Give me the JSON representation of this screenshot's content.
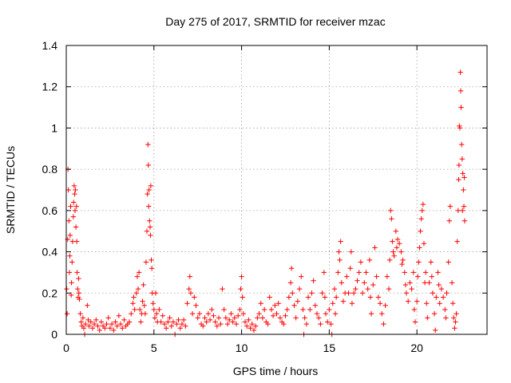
{
  "chart_data": {
    "type": "scatter",
    "title": "Day 275 of 2017, SRMTID for receiver mzac",
    "xlabel": "GPS time / hours",
    "ylabel": "SRMTID / TECUs",
    "xlim": [
      0,
      24
    ],
    "ylim": [
      0,
      1.4
    ],
    "xticks": [
      0,
      5,
      10,
      15,
      20
    ],
    "xtick_labels": [
      "0",
      "5",
      "10",
      "15",
      "20"
    ],
    "yticks": [
      0,
      0.2,
      0.4,
      0.6,
      0.8,
      1.0,
      1.2,
      1.4
    ],
    "ytick_labels": [
      "0",
      "0.2",
      "0.4",
      "0.6",
      "0.8",
      "1",
      "1.2",
      "1.4"
    ],
    "grid": true,
    "marker": "+",
    "color": "#ff0000",
    "series": [
      {
        "name": "SRMTID",
        "points": [
          [
            0.02,
            0.22
          ],
          [
            0.05,
            0.1
          ],
          [
            0.08,
            0.46
          ],
          [
            0.1,
            0.8
          ],
          [
            0.12,
            0.7
          ],
          [
            0.15,
            0.55
          ],
          [
            0.18,
            0.3
          ],
          [
            0.2,
            0.38
          ],
          [
            0.22,
            0.48
          ],
          [
            0.25,
            0.62
          ],
          [
            0.28,
            0.19
          ],
          [
            0.3,
            0.25
          ],
          [
            0.33,
            0.35
          ],
          [
            0.36,
            0.45
          ],
          [
            0.4,
            0.57
          ],
          [
            0.42,
            0.64
          ],
          [
            0.45,
            0.72
          ],
          [
            0.48,
            0.68
          ],
          [
            0.5,
            0.6
          ],
          [
            0.52,
            0.7
          ],
          [
            0.55,
            0.52
          ],
          [
            0.58,
            0.62
          ],
          [
            0.6,
            0.45
          ],
          [
            0.62,
            0.3
          ],
          [
            0.65,
            0.22
          ],
          [
            0.68,
            0.18
          ],
          [
            0.7,
            0.27
          ],
          [
            0.72,
            0.2
          ],
          [
            0.75,
            0.17
          ],
          [
            0.8,
            0.1
          ],
          [
            0.85,
            0.06
          ],
          [
            0.9,
            0.04
          ],
          [
            0.95,
            0.08
          ],
          [
            1.0,
            0.03
          ],
          [
            1.05,
            0.0
          ],
          [
            1.1,
            0.05
          ],
          [
            1.2,
            0.14
          ],
          [
            1.25,
            0.07
          ],
          [
            1.3,
            0.04
          ],
          [
            1.4,
            0.06
          ],
          [
            1.5,
            0.03
          ],
          [
            1.6,
            0.05
          ],
          [
            1.7,
            0.07
          ],
          [
            1.8,
            0.04
          ],
          [
            1.9,
            0.02
          ],
          [
            2.0,
            0.06
          ],
          [
            2.1,
            0.04
          ],
          [
            2.2,
            0.03
          ],
          [
            2.3,
            0.05
          ],
          [
            2.4,
            0.08
          ],
          [
            2.5,
            0.03
          ],
          [
            2.6,
            0.05
          ],
          [
            2.7,
            0.02
          ],
          [
            2.8,
            0.06
          ],
          [
            2.9,
            0.04
          ],
          [
            3.0,
            0.09
          ],
          [
            3.1,
            0.05
          ],
          [
            3.2,
            0.03
          ],
          [
            3.3,
            0.07
          ],
          [
            3.4,
            0.04
          ],
          [
            3.5,
            0.05
          ],
          [
            3.6,
            0.06
          ],
          [
            3.7,
            0.1
          ],
          [
            3.8,
            0.15
          ],
          [
            3.85,
            0.18
          ],
          [
            3.9,
            0.12
          ],
          [
            4.0,
            0.2
          ],
          [
            4.05,
            0.28
          ],
          [
            4.1,
            0.22
          ],
          [
            4.15,
            0.3
          ],
          [
            4.2,
            0.12
          ],
          [
            4.25,
            0.06
          ],
          [
            4.3,
            0.1
          ],
          [
            4.35,
            0.16
          ],
          [
            4.4,
            0.24
          ],
          [
            4.45,
            0.14
          ],
          [
            4.5,
            0.1
          ],
          [
            4.55,
            0.35
          ],
          [
            4.6,
            0.5
          ],
          [
            4.63,
            0.68
          ],
          [
            4.66,
            0.92
          ],
          [
            4.68,
            0.82
          ],
          [
            4.7,
            0.62
          ],
          [
            4.72,
            0.7
          ],
          [
            4.75,
            0.55
          ],
          [
            4.78,
            0.52
          ],
          [
            4.8,
            0.48
          ],
          [
            4.82,
            0.72
          ],
          [
            4.85,
            0.36
          ],
          [
            4.88,
            0.32
          ],
          [
            4.9,
            0.2
          ],
          [
            4.95,
            0.15
          ],
          [
            5.0,
            0.12
          ],
          [
            5.05,
            0.08
          ],
          [
            5.1,
            0.2
          ],
          [
            5.15,
            0.1
          ],
          [
            5.2,
            0.06
          ],
          [
            5.3,
            0.12
          ],
          [
            5.4,
            0.06
          ],
          [
            5.5,
            0.09
          ],
          [
            5.6,
            0.05
          ],
          [
            5.7,
            0.03
          ],
          [
            5.8,
            0.06
          ],
          [
            5.9,
            0.08
          ],
          [
            6.0,
            0.04
          ],
          [
            6.1,
            0.06
          ],
          [
            6.2,
            0.0
          ],
          [
            6.3,
            0.05
          ],
          [
            6.4,
            0.07
          ],
          [
            6.5,
            0.03
          ],
          [
            6.6,
            0.05
          ],
          [
            6.7,
            0.07
          ],
          [
            6.8,
            0.04
          ],
          [
            6.9,
            0.15
          ],
          [
            7.0,
            0.22
          ],
          [
            7.05,
            0.28
          ],
          [
            7.1,
            0.2
          ],
          [
            7.2,
            0.1
          ],
          [
            7.3,
            0.18
          ],
          [
            7.4,
            0.14
          ],
          [
            7.5,
            0.08
          ],
          [
            7.6,
            0.1
          ],
          [
            7.7,
            0.05
          ],
          [
            7.8,
            0.04
          ],
          [
            7.9,
            0.08
          ],
          [
            8.0,
            0.06
          ],
          [
            8.1,
            0.1
          ],
          [
            8.2,
            0.07
          ],
          [
            8.3,
            0.12
          ],
          [
            8.4,
            0.09
          ],
          [
            8.5,
            0.06
          ],
          [
            8.6,
            0.04
          ],
          [
            8.7,
            0.08
          ],
          [
            8.8,
            0.05
          ],
          [
            8.9,
            0.22
          ],
          [
            9.0,
            0.12
          ],
          [
            9.1,
            0.08
          ],
          [
            9.2,
            0.05
          ],
          [
            9.3,
            0.07
          ],
          [
            9.4,
            0.1
          ],
          [
            9.5,
            0.06
          ],
          [
            9.6,
            0.08
          ],
          [
            9.7,
            0.05
          ],
          [
            9.8,
            0.09
          ],
          [
            9.9,
            0.12
          ],
          [
            9.95,
            0.22
          ],
          [
            10.0,
            0.28
          ],
          [
            10.05,
            0.18
          ],
          [
            10.1,
            0.1
          ],
          [
            10.2,
            0.06
          ],
          [
            10.3,
            0.04
          ],
          [
            10.4,
            0.07
          ],
          [
            10.5,
            0.03
          ],
          [
            10.6,
            0.05
          ],
          [
            10.7,
            0.02
          ],
          [
            10.8,
            0.04
          ],
          [
            10.9,
            0.08
          ],
          [
            11.0,
            0.1
          ],
          [
            11.1,
            0.15
          ],
          [
            11.2,
            0.08
          ],
          [
            11.3,
            0.12
          ],
          [
            11.4,
            0.06
          ],
          [
            11.5,
            0.05
          ],
          [
            11.6,
            0.18
          ],
          [
            11.7,
            0.12
          ],
          [
            11.8,
            0.09
          ],
          [
            11.9,
            0.14
          ],
          [
            12.0,
            0.1
          ],
          [
            12.1,
            0.15
          ],
          [
            12.2,
            0.08
          ],
          [
            12.3,
            0.06
          ],
          [
            12.4,
            0.05
          ],
          [
            12.5,
            0.09
          ],
          [
            12.6,
            0.12
          ],
          [
            12.7,
            0.18
          ],
          [
            12.8,
            0.25
          ],
          [
            12.85,
            0.32
          ],
          [
            12.9,
            0.2
          ],
          [
            13.0,
            0.14
          ],
          [
            13.1,
            0.08
          ],
          [
            13.2,
            0.16
          ],
          [
            13.3,
            0.22
          ],
          [
            13.4,
            0.28
          ],
          [
            13.5,
            0.12
          ],
          [
            13.55,
            0.0
          ],
          [
            13.6,
            0.08
          ],
          [
            13.7,
            0.05
          ],
          [
            13.8,
            0.18
          ],
          [
            13.9,
            0.12
          ],
          [
            14.0,
            0.2
          ],
          [
            14.1,
            0.26
          ],
          [
            14.2,
            0.14
          ],
          [
            14.3,
            0.1
          ],
          [
            14.4,
            0.08
          ],
          [
            14.5,
            0.05
          ],
          [
            14.6,
            0.2
          ],
          [
            14.7,
            0.3
          ],
          [
            14.75,
            0.18
          ],
          [
            14.8,
            0.1
          ],
          [
            14.9,
            0.06
          ],
          [
            15.0,
            0.12
          ],
          [
            15.1,
            0.05
          ],
          [
            15.15,
            0.0
          ],
          [
            15.2,
            0.15
          ],
          [
            15.3,
            0.22
          ],
          [
            15.35,
            0.1
          ],
          [
            15.4,
            0.18
          ],
          [
            15.5,
            0.3
          ],
          [
            15.55,
            0.4
          ],
          [
            15.6,
            0.36
          ],
          [
            15.65,
            0.45
          ],
          [
            15.7,
            0.25
          ],
          [
            15.8,
            0.16
          ],
          [
            15.9,
            0.2
          ],
          [
            16.0,
            0.28
          ],
          [
            16.1,
            0.2
          ],
          [
            16.2,
            0.32
          ],
          [
            16.25,
            0.4
          ],
          [
            16.3,
            0.15
          ],
          [
            16.4,
            0.2
          ],
          [
            16.5,
            0.22
          ],
          [
            16.6,
            0.26
          ],
          [
            16.7,
            0.3
          ],
          [
            16.8,
            0.35
          ],
          [
            16.9,
            0.2
          ],
          [
            17.0,
            0.25
          ],
          [
            17.1,
            0.3
          ],
          [
            17.2,
            0.22
          ],
          [
            17.3,
            0.36
          ],
          [
            17.35,
            0.18
          ],
          [
            17.4,
            0.1
          ],
          [
            17.5,
            0.24
          ],
          [
            17.6,
            0.42
          ],
          [
            17.7,
            0.28
          ],
          [
            17.8,
            0.18
          ],
          [
            17.9,
            0.15
          ],
          [
            18.0,
            0.1
          ],
          [
            18.1,
            0.05
          ],
          [
            18.2,
            0.14
          ],
          [
            18.3,
            0.28
          ],
          [
            18.4,
            0.22
          ],
          [
            18.45,
            0.36
          ],
          [
            18.5,
            0.6
          ],
          [
            18.55,
            0.56
          ],
          [
            18.6,
            0.45
          ],
          [
            18.65,
            0.4
          ],
          [
            18.7,
            0.38
          ],
          [
            18.8,
            0.5
          ],
          [
            18.85,
            0.42
          ],
          [
            18.9,
            0.46
          ],
          [
            19.0,
            0.44
          ],
          [
            19.1,
            0.4
          ],
          [
            19.15,
            0.34
          ],
          [
            19.2,
            0.36
          ],
          [
            19.3,
            0.3
          ],
          [
            19.35,
            0.24
          ],
          [
            19.4,
            0.2
          ],
          [
            19.5,
            0.16
          ],
          [
            19.6,
            0.25
          ],
          [
            19.7,
            0.22
          ],
          [
            19.8,
            0.3
          ],
          [
            19.85,
            0.12
          ],
          [
            19.9,
            0.06
          ],
          [
            20.0,
            0.16
          ],
          [
            20.05,
            0.28
          ],
          [
            20.1,
            0.35
          ],
          [
            20.15,
            0.42
          ],
          [
            20.2,
            0.5
          ],
          [
            20.25,
            0.56
          ],
          [
            20.3,
            0.6
          ],
          [
            20.35,
            0.63
          ],
          [
            20.4,
            0.44
          ],
          [
            20.45,
            0.25
          ],
          [
            20.5,
            0.3
          ],
          [
            20.55,
            0.15
          ],
          [
            20.6,
            0.08
          ],
          [
            20.7,
            0.25
          ],
          [
            20.8,
            0.35
          ],
          [
            20.85,
            0.28
          ],
          [
            20.9,
            0.2
          ],
          [
            21.0,
            0.1
          ],
          [
            21.05,
            0.02
          ],
          [
            21.1,
            0.18
          ],
          [
            21.2,
            0.3
          ],
          [
            21.25,
            0.24
          ],
          [
            21.3,
            0.15
          ],
          [
            21.4,
            0.22
          ],
          [
            21.5,
            0.18
          ],
          [
            21.6,
            0.12
          ],
          [
            21.65,
            0.08
          ],
          [
            21.7,
            0.2
          ],
          [
            21.8,
            0.35
          ],
          [
            21.85,
            0.55
          ],
          [
            21.9,
            0.62
          ],
          [
            22.0,
            0.25
          ],
          [
            22.05,
            0.15
          ],
          [
            22.1,
            0.08
          ],
          [
            22.15,
            0.03
          ],
          [
            22.2,
            0.06
          ],
          [
            22.25,
            0.1
          ],
          [
            22.3,
            0.45
          ],
          [
            22.35,
            0.6
          ],
          [
            22.38,
            0.75
          ],
          [
            22.4,
            0.82
          ],
          [
            22.42,
            1.01
          ],
          [
            22.45,
            1.0
          ],
          [
            22.48,
            1.27
          ],
          [
            22.5,
            1.18
          ],
          [
            22.52,
            1.1
          ],
          [
            22.55,
            0.92
          ],
          [
            22.58,
            0.85
          ],
          [
            22.6,
            0.6
          ],
          [
            22.62,
            0.78
          ],
          [
            22.65,
            0.7
          ],
          [
            22.68,
            0.62
          ],
          [
            22.7,
            0.76
          ],
          [
            22.72,
            0.55
          ]
        ]
      }
    ]
  }
}
